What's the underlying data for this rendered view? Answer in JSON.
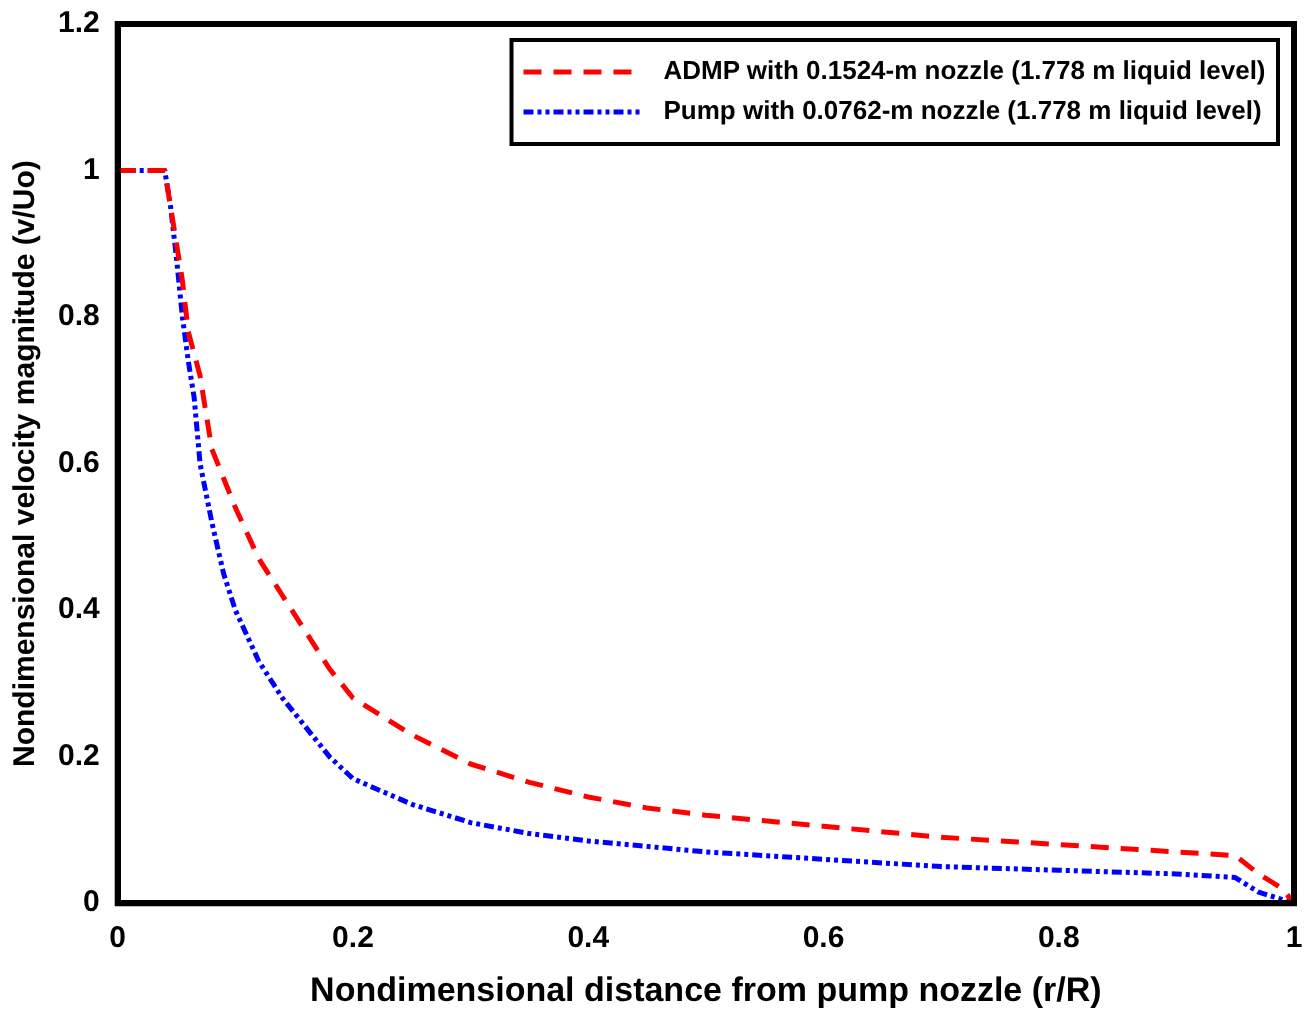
{
  "chart_data": {
    "type": "line",
    "xlabel": "Nondimensional distance from pump nozzle (r/R)",
    "ylabel": "Nondimensional velocity magnitude (v/Uo)",
    "xlim": [
      0,
      1
    ],
    "xticks": [
      0,
      0.2,
      0.4,
      0.6,
      0.8,
      1
    ],
    "ylim": [
      0,
      1.2
    ],
    "yticks": [
      0,
      0.2,
      0.4,
      0.6,
      0.8,
      1,
      1.2
    ],
    "grid": false,
    "legend": "top right",
    "marker": "none",
    "series": [
      {
        "name": "ADMP with 0.1524-m nozzle (1.778 m liquid level)",
        "color": "#ff0000",
        "line_style": "dashed",
        "x": [
          0,
          0.04,
          0.045,
          0.05,
          0.055,
          0.06,
          0.07,
          0.08,
          0.09,
          0.1,
          0.12,
          0.14,
          0.16,
          0.18,
          0.2,
          0.25,
          0.3,
          0.35,
          0.4,
          0.45,
          0.5,
          0.6,
          0.7,
          0.8,
          0.9,
          0.95,
          0.97,
          0.99,
          1
        ],
        "values": [
          1,
          1,
          0.95,
          0.9,
          0.85,
          0.78,
          0.72,
          0.62,
          0.58,
          0.54,
          0.47,
          0.42,
          0.37,
          0.32,
          0.28,
          0.23,
          0.19,
          0.165,
          0.145,
          0.13,
          0.12,
          0.105,
          0.09,
          0.08,
          0.07,
          0.065,
          0.04,
          0.02,
          0
        ]
      },
      {
        "name": "Pump with 0.0762-m nozzle (1.778 m liquid level)",
        "color": "#0000ff",
        "line_style": "dotted",
        "x": [
          0,
          0.04,
          0.045,
          0.05,
          0.055,
          0.06,
          0.065,
          0.07,
          0.08,
          0.09,
          0.1,
          0.12,
          0.14,
          0.16,
          0.18,
          0.2,
          0.25,
          0.3,
          0.35,
          0.4,
          0.5,
          0.6,
          0.7,
          0.8,
          0.9,
          0.95,
          0.97,
          1
        ],
        "values": [
          1,
          1,
          0.95,
          0.88,
          0.8,
          0.74,
          0.69,
          0.6,
          0.52,
          0.45,
          0.4,
          0.33,
          0.28,
          0.24,
          0.2,
          0.17,
          0.135,
          0.11,
          0.095,
          0.085,
          0.07,
          0.06,
          0.05,
          0.045,
          0.04,
          0.035,
          0.015,
          0
        ]
      }
    ]
  }
}
